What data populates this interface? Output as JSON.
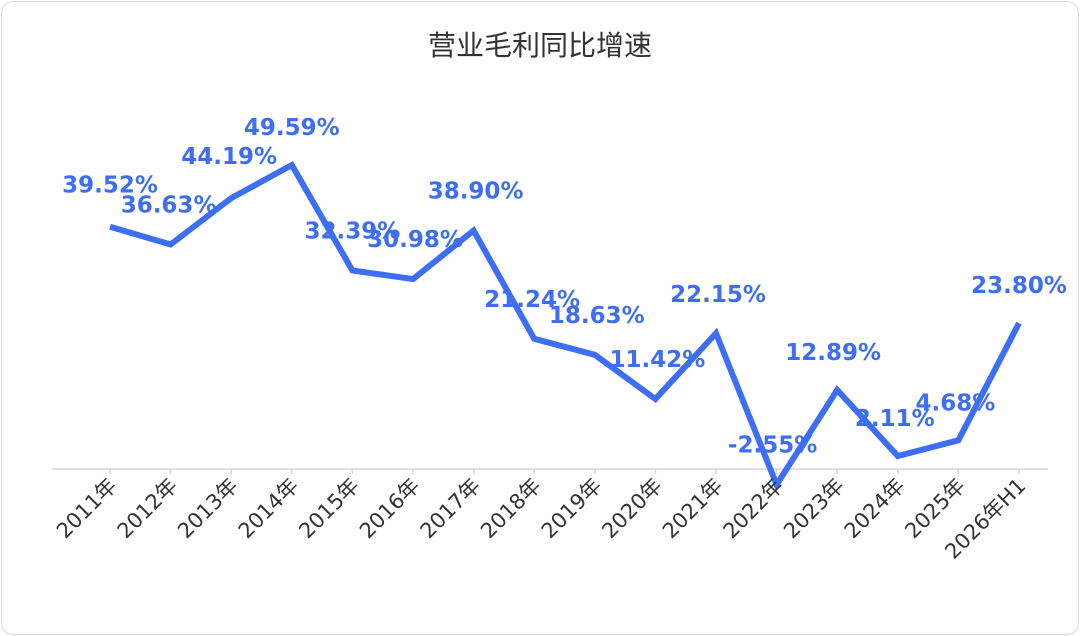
{
  "chart_data": {
    "type": "line",
    "title": "营业毛利同比增速",
    "xlabel": "",
    "ylabel": "",
    "categories": [
      "2011年",
      "2012年",
      "2013年",
      "2014年",
      "2015年",
      "2016年",
      "2017年",
      "2018年",
      "2019年",
      "2020年",
      "2021年",
      "2022年",
      "2023年",
      "2024年",
      "2025年",
      "2026年H1"
    ],
    "series": [
      {
        "values": [
          39.52,
          36.63,
          44.19,
          49.59,
          32.39,
          30.98,
          38.9,
          21.24,
          18.63,
          11.42,
          22.15,
          -2.55,
          12.89,
          2.11,
          4.68,
          23.8
        ],
        "labels": [
          "39.52%",
          "36.63%",
          "44.19%",
          "49.59%",
          "32.39%",
          "30.98%",
          "38.90%",
          "21.24%",
          "18.63%",
          "11.42%",
          "22.15%",
          "-2.55%",
          "12.89%",
          "2.11%",
          "4.68%",
          "23.80%"
        ]
      }
    ],
    "ylim": [
      -4,
      52
    ],
    "grid": false,
    "legend": "none",
    "colors": {
      "line": "#3d6ef5",
      "label": "#3d6ef5",
      "dropline": "#c5d3fb",
      "axis": "#d6d6d6",
      "tick_text": "#333333"
    }
  }
}
